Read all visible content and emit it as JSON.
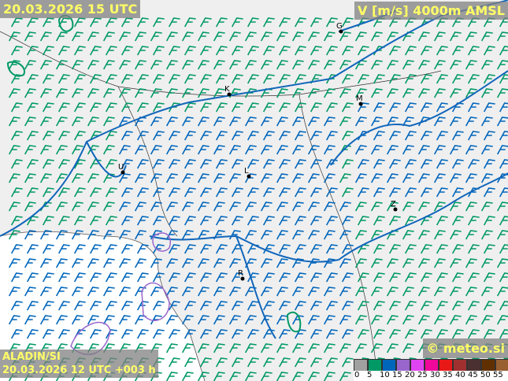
{
  "header": {
    "valid_time": "20.03.2026 15 UTC",
    "field": "V [m/s] 4000m AMSL"
  },
  "footer": {
    "model": "ALADIN/SI",
    "run": "20.03.2026 12 UTC +003 h",
    "copyright": "© meteo.si"
  },
  "legend": {
    "unit": "m/s",
    "ticks": [
      "0",
      "5",
      "10",
      "15",
      "20",
      "25",
      "30",
      "35",
      "40",
      "45",
      "50",
      "55"
    ],
    "colors": [
      "#a0a0a0",
      "#009966",
      "#0066bb",
      "#9966cc",
      "#e044f0",
      "#f0089a",
      "#e81818",
      "#a03030",
      "#4a3030",
      "#603000",
      "#986030",
      "#c0a070"
    ]
  },
  "cities": [
    {
      "label": "G"
    },
    {
      "label": "K"
    },
    {
      "label": "M"
    },
    {
      "label": "U"
    },
    {
      "label": "L"
    },
    {
      "label": "Z"
    },
    {
      "label": "R"
    }
  ],
  "colors": {
    "contour": "#1166bb",
    "wind_5_10": "#009966",
    "wind_10_15": "#0066bb",
    "wind_15_20": "#9966cc",
    "land": "#efefef",
    "sea": "#ffffff"
  }
}
